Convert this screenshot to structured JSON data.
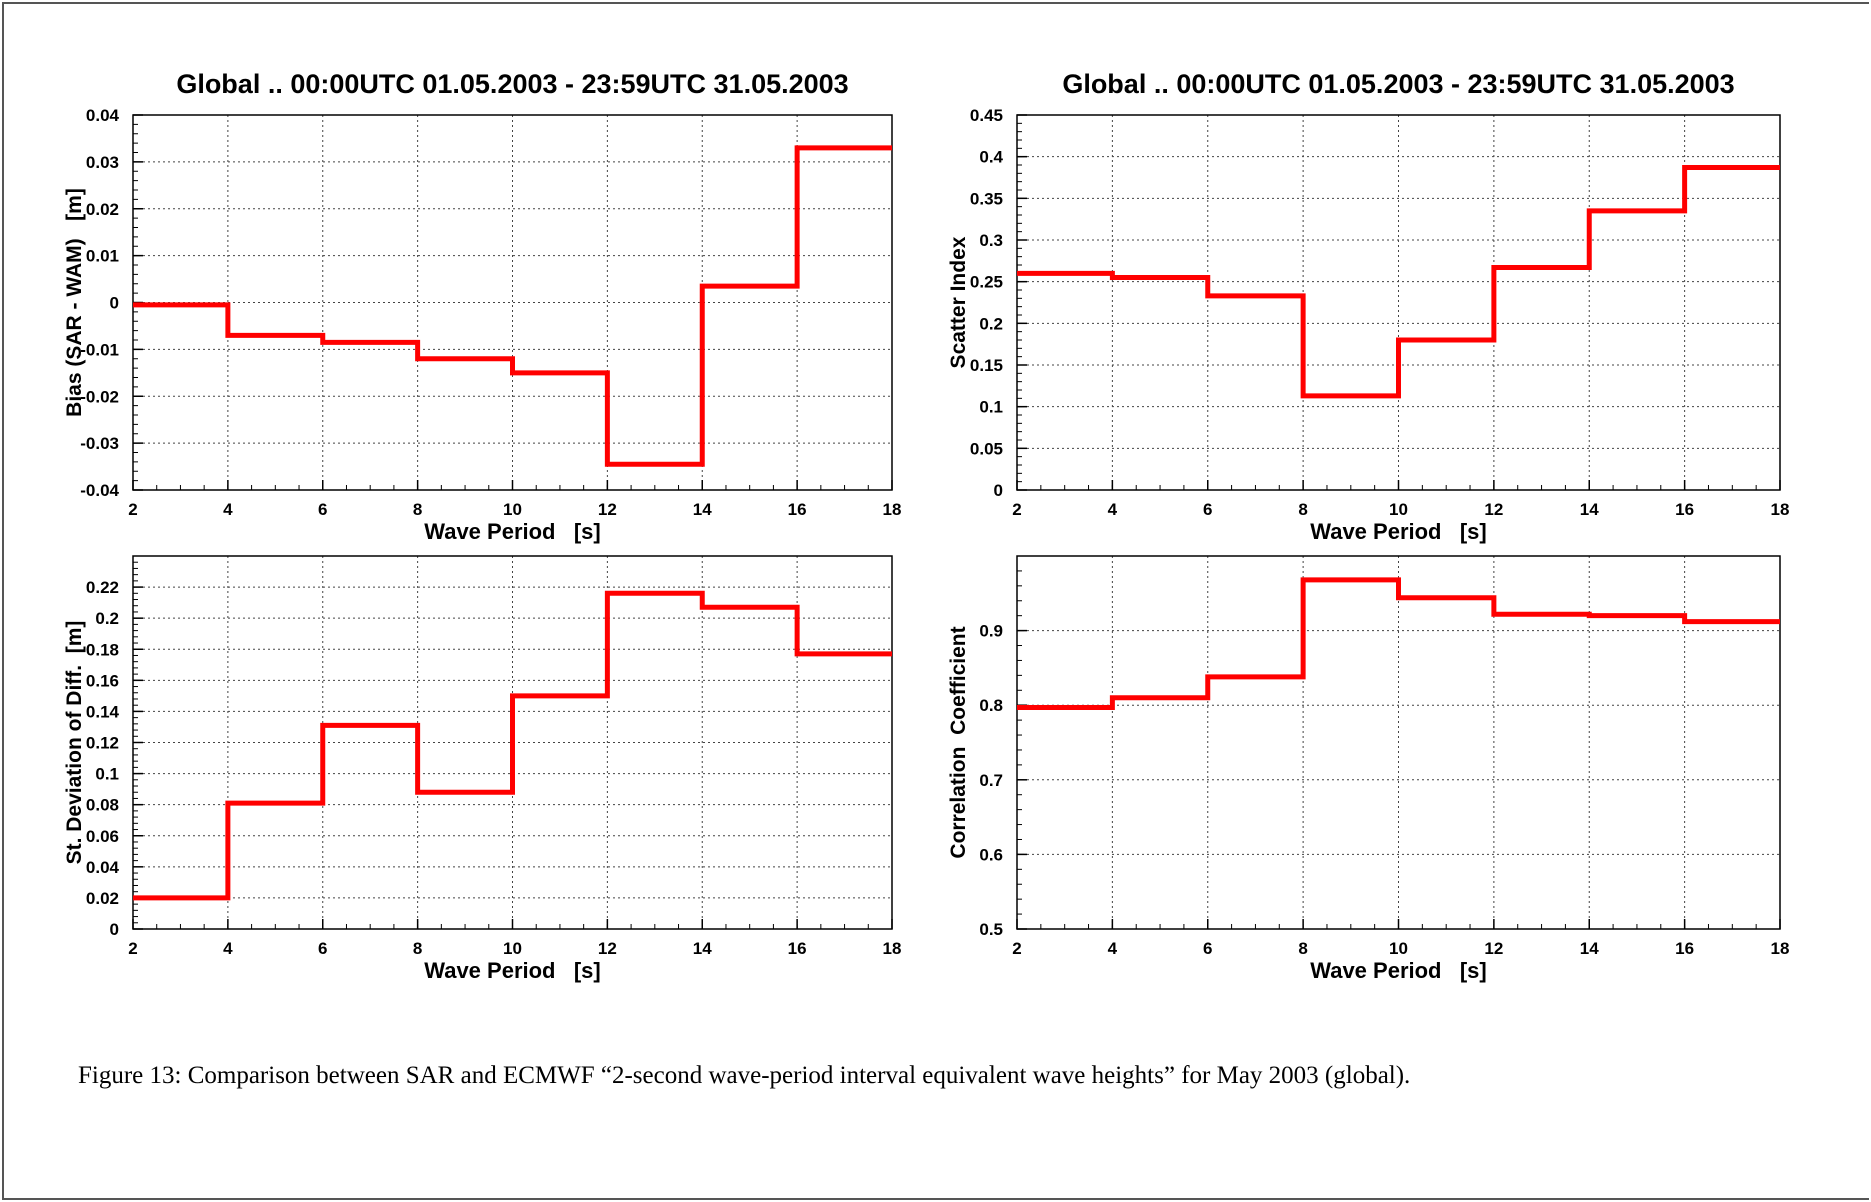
{
  "caption": "Figure 13: Comparison between SAR and ECMWF “2-second wave-period interval equivalent wave heights” for May 2003 (global).",
  "colors": {
    "line": "#ff0000",
    "grid": "#444444",
    "text": "#000000"
  },
  "chart_data": [
    {
      "type": "line",
      "step": true,
      "title": "Global .. 00:00UTC 01.05.2003 - 23:59UTC 31.05.2003",
      "xlabel": "Wave Period   [s]",
      "ylabel": "Bias (SAR - WAM)   [m]",
      "xlim": [
        2,
        18
      ],
      "ylim": [
        -0.04,
        0.04
      ],
      "xticks": [
        "2",
        "4",
        "6",
        "8",
        "10",
        "12",
        "14",
        "16",
        "18"
      ],
      "yticks": [
        "-0.04",
        "-0.03",
        "-0.02",
        "-0.01",
        "0",
        "0.01",
        "0.02",
        "0.03",
        "0.04"
      ],
      "grid": true,
      "bins": [
        [
          2,
          4
        ],
        [
          4,
          6
        ],
        [
          6,
          8
        ],
        [
          8,
          10
        ],
        [
          10,
          12
        ],
        [
          12,
          14
        ],
        [
          14,
          16
        ],
        [
          16,
          18
        ]
      ],
      "values": [
        -0.0005,
        -0.007,
        -0.0085,
        -0.012,
        -0.015,
        -0.0345,
        0.0035,
        0.033
      ]
    },
    {
      "type": "line",
      "step": true,
      "title": "Global .. 00:00UTC 01.05.2003 - 23:59UTC 31.05.2003",
      "xlabel": "Wave Period   [s]",
      "ylabel": "Scatter Index",
      "xlim": [
        2,
        18
      ],
      "ylim": [
        0,
        0.45
      ],
      "xticks": [
        "2",
        "4",
        "6",
        "8",
        "10",
        "12",
        "14",
        "16",
        "18"
      ],
      "yticks": [
        "0",
        "0.05",
        "0.1",
        "0.15",
        "0.2",
        "0.25",
        "0.3",
        "0.35",
        "0.4",
        "0.45"
      ],
      "grid": true,
      "bins": [
        [
          2,
          4
        ],
        [
          4,
          6
        ],
        [
          6,
          8
        ],
        [
          8,
          10
        ],
        [
          10,
          12
        ],
        [
          12,
          14
        ],
        [
          14,
          16
        ],
        [
          16,
          18
        ]
      ],
      "values": [
        0.26,
        0.255,
        0.233,
        0.113,
        0.18,
        0.267,
        0.335,
        0.387
      ]
    },
    {
      "type": "line",
      "step": true,
      "title": "",
      "xlabel": "Wave Period   [s]",
      "ylabel": "St. Deviation of Diff.  [m]",
      "xlim": [
        2,
        18
      ],
      "ylim": [
        0,
        0.24
      ],
      "xticks": [
        "2",
        "4",
        "6",
        "8",
        "10",
        "12",
        "14",
        "16",
        "18"
      ],
      "yticks": [
        "0",
        "0.02",
        "0.04",
        "0.06",
        "0.08",
        "0.1",
        "0.12",
        "0.14",
        "0.16",
        "0.18",
        "0.2",
        "0.22"
      ],
      "grid": true,
      "bins": [
        [
          2,
          4
        ],
        [
          4,
          6
        ],
        [
          6,
          8
        ],
        [
          8,
          10
        ],
        [
          10,
          12
        ],
        [
          12,
          14
        ],
        [
          14,
          16
        ],
        [
          16,
          18
        ]
      ],
      "values": [
        0.02,
        0.081,
        0.131,
        0.088,
        0.15,
        0.216,
        0.207,
        0.177
      ]
    },
    {
      "type": "line",
      "step": true,
      "title": "",
      "xlabel": "Wave Period   [s]",
      "ylabel": "Correlation  Coefficient",
      "xlim": [
        2,
        18
      ],
      "ylim": [
        0.5,
        1.0
      ],
      "xticks": [
        "2",
        "4",
        "6",
        "8",
        "10",
        "12",
        "14",
        "16",
        "18"
      ],
      "yticks": [
        "0.5",
        "0.6",
        "0.7",
        "0.8",
        "0.9"
      ],
      "grid": true,
      "bins": [
        [
          2,
          4
        ],
        [
          4,
          6
        ],
        [
          6,
          8
        ],
        [
          8,
          10
        ],
        [
          10,
          12
        ],
        [
          12,
          14
        ],
        [
          14,
          16
        ],
        [
          16,
          18
        ]
      ],
      "values": [
        0.797,
        0.81,
        0.838,
        0.968,
        0.944,
        0.922,
        0.92,
        0.912
      ]
    }
  ]
}
